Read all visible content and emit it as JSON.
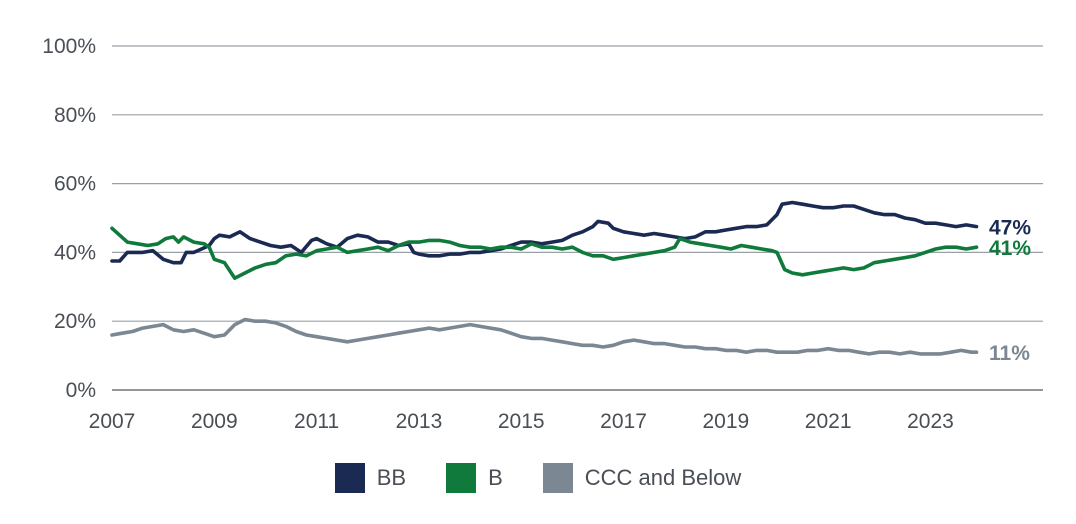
{
  "chart_data": {
    "type": "line",
    "title": "",
    "xlabel": "",
    "ylabel": "",
    "xlim": [
      2007,
      2025.2
    ],
    "ylim": [
      0,
      100
    ],
    "x_ticks": [
      "2007",
      "2009",
      "2011",
      "2013",
      "2015",
      "2017",
      "2019",
      "2021",
      "2023"
    ],
    "y_ticks": [
      "0%",
      "20%",
      "40%",
      "60%",
      "80%",
      "100%"
    ],
    "grid": true,
    "legend_position": "bottom",
    "series": [
      {
        "name": "BB",
        "color": "#1b2a52",
        "end_label": "47%",
        "points": [
          [
            2007.0,
            37.5
          ],
          [
            2007.15,
            37.5
          ],
          [
            2007.3,
            40
          ],
          [
            2007.6,
            40
          ],
          [
            2007.8,
            40.5
          ],
          [
            2008.0,
            38
          ],
          [
            2008.2,
            37
          ],
          [
            2008.35,
            37
          ],
          [
            2008.45,
            40
          ],
          [
            2008.6,
            40
          ],
          [
            2008.75,
            41
          ],
          [
            2008.9,
            42
          ],
          [
            2009.0,
            44
          ],
          [
            2009.1,
            45
          ],
          [
            2009.3,
            44.5
          ],
          [
            2009.5,
            46
          ],
          [
            2009.7,
            44
          ],
          [
            2009.9,
            43
          ],
          [
            2010.1,
            42
          ],
          [
            2010.3,
            41.5
          ],
          [
            2010.5,
            42
          ],
          [
            2010.7,
            40
          ],
          [
            2010.9,
            43.5
          ],
          [
            2011.0,
            44
          ],
          [
            2011.2,
            42.5
          ],
          [
            2011.4,
            41.5
          ],
          [
            2011.6,
            44
          ],
          [
            2011.8,
            45
          ],
          [
            2012.0,
            44.5
          ],
          [
            2012.2,
            43
          ],
          [
            2012.4,
            43
          ],
          [
            2012.6,
            42
          ],
          [
            2012.8,
            42.5
          ],
          [
            2012.9,
            40
          ],
          [
            2013.0,
            39.5
          ],
          [
            2013.2,
            39
          ],
          [
            2013.4,
            39
          ],
          [
            2013.6,
            39.5
          ],
          [
            2013.8,
            39.5
          ],
          [
            2014.0,
            40
          ],
          [
            2014.2,
            40
          ],
          [
            2014.4,
            40.5
          ],
          [
            2014.6,
            41
          ],
          [
            2014.8,
            42
          ],
          [
            2015.0,
            43
          ],
          [
            2015.2,
            43
          ],
          [
            2015.4,
            42.5
          ],
          [
            2015.6,
            43
          ],
          [
            2015.8,
            43.5
          ],
          [
            2016.0,
            45
          ],
          [
            2016.2,
            46
          ],
          [
            2016.4,
            47.5
          ],
          [
            2016.5,
            49
          ],
          [
            2016.7,
            48.5
          ],
          [
            2016.8,
            47
          ],
          [
            2017.0,
            46
          ],
          [
            2017.2,
            45.5
          ],
          [
            2017.4,
            45
          ],
          [
            2017.6,
            45.5
          ],
          [
            2017.8,
            45
          ],
          [
            2018.0,
            44.5
          ],
          [
            2018.2,
            44
          ],
          [
            2018.4,
            44.5
          ],
          [
            2018.6,
            46
          ],
          [
            2018.8,
            46
          ],
          [
            2019.0,
            46.5
          ],
          [
            2019.2,
            47
          ],
          [
            2019.4,
            47.5
          ],
          [
            2019.6,
            47.5
          ],
          [
            2019.8,
            48
          ],
          [
            2020.0,
            51
          ],
          [
            2020.1,
            54
          ],
          [
            2020.3,
            54.5
          ],
          [
            2020.5,
            54
          ],
          [
            2020.7,
            53.5
          ],
          [
            2020.9,
            53
          ],
          [
            2021.1,
            53
          ],
          [
            2021.3,
            53.5
          ],
          [
            2021.5,
            53.5
          ],
          [
            2021.7,
            52.5
          ],
          [
            2021.9,
            51.5
          ],
          [
            2022.1,
            51
          ],
          [
            2022.3,
            51
          ],
          [
            2022.5,
            50
          ],
          [
            2022.7,
            49.5
          ],
          [
            2022.9,
            48.5
          ],
          [
            2023.1,
            48.5
          ],
          [
            2023.3,
            48
          ],
          [
            2023.5,
            47.5
          ],
          [
            2023.7,
            48
          ],
          [
            2023.9,
            47.5
          ]
        ]
      },
      {
        "name": "B",
        "color": "#0f7a3b",
        "end_label": "41%",
        "points": [
          [
            2007.0,
            47
          ],
          [
            2007.15,
            45
          ],
          [
            2007.3,
            43
          ],
          [
            2007.5,
            42.5
          ],
          [
            2007.7,
            42
          ],
          [
            2007.9,
            42.5
          ],
          [
            2008.05,
            44
          ],
          [
            2008.2,
            44.5
          ],
          [
            2008.3,
            43
          ],
          [
            2008.4,
            44.5
          ],
          [
            2008.6,
            43
          ],
          [
            2008.8,
            42.5
          ],
          [
            2008.9,
            41.5
          ],
          [
            2009.0,
            38
          ],
          [
            2009.2,
            37
          ],
          [
            2009.4,
            32.5
          ],
          [
            2009.6,
            34
          ],
          [
            2009.8,
            35.5
          ],
          [
            2010.0,
            36.5
          ],
          [
            2010.2,
            37
          ],
          [
            2010.4,
            39
          ],
          [
            2010.6,
            39.5
          ],
          [
            2010.8,
            39
          ],
          [
            2011.0,
            40.5
          ],
          [
            2011.2,
            41
          ],
          [
            2011.4,
            41.5
          ],
          [
            2011.6,
            40
          ],
          [
            2011.8,
            40.5
          ],
          [
            2012.0,
            41
          ],
          [
            2012.2,
            41.5
          ],
          [
            2012.4,
            40.5
          ],
          [
            2012.6,
            42
          ],
          [
            2012.8,
            43
          ],
          [
            2013.0,
            43
          ],
          [
            2013.2,
            43.5
          ],
          [
            2013.4,
            43.5
          ],
          [
            2013.6,
            43
          ],
          [
            2013.8,
            42
          ],
          [
            2014.0,
            41.5
          ],
          [
            2014.2,
            41.5
          ],
          [
            2014.4,
            41
          ],
          [
            2014.6,
            41.5
          ],
          [
            2014.8,
            41.5
          ],
          [
            2015.0,
            41
          ],
          [
            2015.2,
            42.5
          ],
          [
            2015.4,
            41.5
          ],
          [
            2015.6,
            41.5
          ],
          [
            2015.8,
            41
          ],
          [
            2016.0,
            41.5
          ],
          [
            2016.2,
            40
          ],
          [
            2016.4,
            39
          ],
          [
            2016.6,
            39
          ],
          [
            2016.8,
            38
          ],
          [
            2017.0,
            38.5
          ],
          [
            2017.2,
            39
          ],
          [
            2017.4,
            39.5
          ],
          [
            2017.6,
            40
          ],
          [
            2017.8,
            40.5
          ],
          [
            2018.0,
            41.5
          ],
          [
            2018.1,
            44
          ],
          [
            2018.3,
            43
          ],
          [
            2018.5,
            42.5
          ],
          [
            2018.7,
            42
          ],
          [
            2018.9,
            41.5
          ],
          [
            2019.1,
            41
          ],
          [
            2019.3,
            42
          ],
          [
            2019.5,
            41.5
          ],
          [
            2019.7,
            41
          ],
          [
            2019.9,
            40.5
          ],
          [
            2020.0,
            40
          ],
          [
            2020.15,
            35
          ],
          [
            2020.3,
            34
          ],
          [
            2020.5,
            33.5
          ],
          [
            2020.7,
            34
          ],
          [
            2020.9,
            34.5
          ],
          [
            2021.1,
            35
          ],
          [
            2021.3,
            35.5
          ],
          [
            2021.5,
            35
          ],
          [
            2021.7,
            35.5
          ],
          [
            2021.9,
            37
          ],
          [
            2022.1,
            37.5
          ],
          [
            2022.3,
            38
          ],
          [
            2022.5,
            38.5
          ],
          [
            2022.7,
            39
          ],
          [
            2022.9,
            40
          ],
          [
            2023.1,
            41
          ],
          [
            2023.3,
            41.5
          ],
          [
            2023.5,
            41.5
          ],
          [
            2023.7,
            41
          ],
          [
            2023.9,
            41.5
          ]
        ]
      },
      {
        "name": "CCC and Below",
        "color": "#7b8792",
        "end_label": "11%",
        "points": [
          [
            2007.0,
            16
          ],
          [
            2007.2,
            16.5
          ],
          [
            2007.4,
            17
          ],
          [
            2007.6,
            18
          ],
          [
            2007.8,
            18.5
          ],
          [
            2008.0,
            19
          ],
          [
            2008.2,
            17.5
          ],
          [
            2008.4,
            17
          ],
          [
            2008.6,
            17.5
          ],
          [
            2008.8,
            16.5
          ],
          [
            2009.0,
            15.5
          ],
          [
            2009.2,
            16
          ],
          [
            2009.4,
            19
          ],
          [
            2009.6,
            20.5
          ],
          [
            2009.8,
            20
          ],
          [
            2010.0,
            20
          ],
          [
            2010.2,
            19.5
          ],
          [
            2010.4,
            18.5
          ],
          [
            2010.6,
            17
          ],
          [
            2010.8,
            16
          ],
          [
            2011.0,
            15.5
          ],
          [
            2011.2,
            15
          ],
          [
            2011.4,
            14.5
          ],
          [
            2011.6,
            14
          ],
          [
            2011.8,
            14.5
          ],
          [
            2012.0,
            15
          ],
          [
            2012.2,
            15.5
          ],
          [
            2012.4,
            16
          ],
          [
            2012.6,
            16.5
          ],
          [
            2012.8,
            17
          ],
          [
            2013.0,
            17.5
          ],
          [
            2013.2,
            18
          ],
          [
            2013.4,
            17.5
          ],
          [
            2013.6,
            18
          ],
          [
            2013.8,
            18.5
          ],
          [
            2014.0,
            19
          ],
          [
            2014.2,
            18.5
          ],
          [
            2014.4,
            18
          ],
          [
            2014.6,
            17.5
          ],
          [
            2014.8,
            16.5
          ],
          [
            2015.0,
            15.5
          ],
          [
            2015.2,
            15
          ],
          [
            2015.4,
            15
          ],
          [
            2015.6,
            14.5
          ],
          [
            2015.8,
            14
          ],
          [
            2016.0,
            13.5
          ],
          [
            2016.2,
            13
          ],
          [
            2016.4,
            13
          ],
          [
            2016.6,
            12.5
          ],
          [
            2016.8,
            13
          ],
          [
            2017.0,
            14
          ],
          [
            2017.2,
            14.5
          ],
          [
            2017.4,
            14
          ],
          [
            2017.6,
            13.5
          ],
          [
            2017.8,
            13.5
          ],
          [
            2018.0,
            13
          ],
          [
            2018.2,
            12.5
          ],
          [
            2018.4,
            12.5
          ],
          [
            2018.6,
            12
          ],
          [
            2018.8,
            12
          ],
          [
            2019.0,
            11.5
          ],
          [
            2019.2,
            11.5
          ],
          [
            2019.4,
            11
          ],
          [
            2019.6,
            11.5
          ],
          [
            2019.8,
            11.5
          ],
          [
            2020.0,
            11
          ],
          [
            2020.2,
            11
          ],
          [
            2020.4,
            11
          ],
          [
            2020.6,
            11.5
          ],
          [
            2020.8,
            11.5
          ],
          [
            2021.0,
            12
          ],
          [
            2021.2,
            11.5
          ],
          [
            2021.4,
            11.5
          ],
          [
            2021.6,
            11
          ],
          [
            2021.8,
            10.5
          ],
          [
            2022.0,
            11
          ],
          [
            2022.2,
            11
          ],
          [
            2022.4,
            10.5
          ],
          [
            2022.6,
            11
          ],
          [
            2022.8,
            10.5
          ],
          [
            2023.0,
            10.5
          ],
          [
            2023.2,
            10.5
          ],
          [
            2023.4,
            11
          ],
          [
            2023.6,
            11.5
          ],
          [
            2023.8,
            11
          ],
          [
            2023.9,
            11
          ]
        ]
      }
    ]
  }
}
